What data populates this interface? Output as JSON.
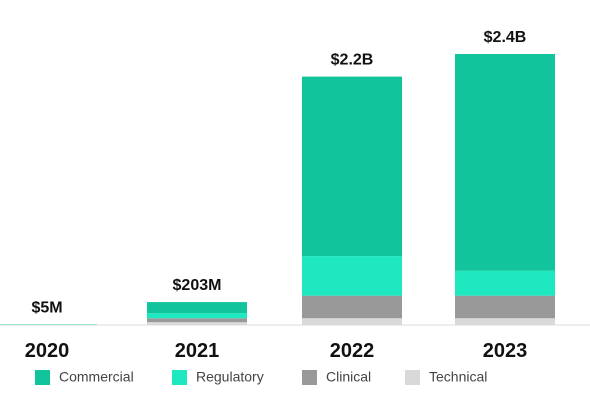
{
  "chart_data": {
    "type": "stacked-bar",
    "categories": [
      "2020",
      "2021",
      "2022",
      "2023"
    ],
    "series": [
      {
        "name": "Commercial",
        "color": "#12c49c",
        "values": [
          3,
          98,
          1590,
          1920
        ]
      },
      {
        "name": "Regulatory",
        "color": "#1ee8bf",
        "values": [
          1,
          45,
          350,
          220
        ]
      },
      {
        "name": "Clinical",
        "color": "#999999",
        "values": [
          1,
          35,
          200,
          200
        ]
      },
      {
        "name": "Technical",
        "color": "#d9d9d9",
        "values": [
          0,
          25,
          60,
          60
        ]
      }
    ],
    "totals": {
      "values": [
        5,
        203,
        2200,
        2400
      ],
      "value_labels": [
        "$5M",
        "$203M",
        "$2.2B",
        "$2.4B"
      ]
    }
  }
}
